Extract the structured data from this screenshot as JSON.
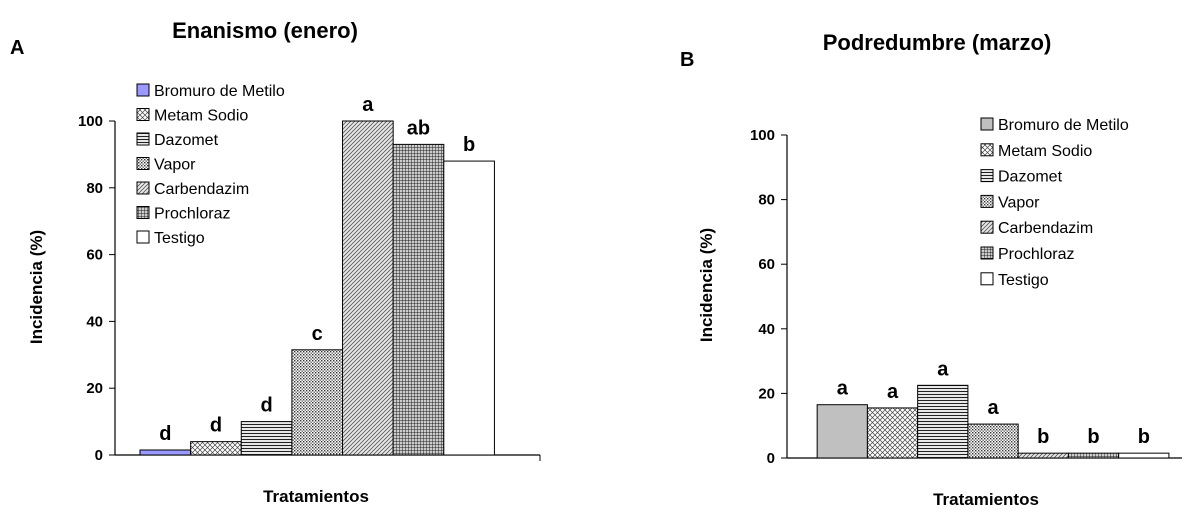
{
  "panels": [
    {
      "panel_letter": "A",
      "legend": [
        "Bromuro de Metilo",
        "Metam Sodio",
        "Dazomet",
        "Vapor",
        "Carbendazim",
        "Prochloraz",
        "Testigo"
      ],
      "chart_data": {
        "type": "bar",
        "title": "Enanismo (enero)",
        "xlabel": "Tratamientos",
        "ylabel": "Incidencia (%)",
        "ylim": [
          0,
          100
        ],
        "yticks": [
          0,
          20,
          40,
          60,
          80,
          100
        ],
        "categories": [
          "Bromuro de Metilo",
          "Metam Sodio",
          "Dazomet",
          "Vapor",
          "Carbendazim",
          "Prochloraz",
          "Testigo"
        ],
        "values": [
          1.5,
          4,
          10,
          31.5,
          100,
          93,
          88
        ],
        "significance_labels": [
          "d",
          "d",
          "d",
          "c",
          "a",
          "ab",
          "b"
        ],
        "legend_position": "top-left",
        "grid": false
      }
    },
    {
      "panel_letter": "B",
      "legend": [
        "Bromuro de Metilo",
        "Metam Sodio",
        "Dazomet",
        "Vapor",
        "Carbendazim",
        "Prochloraz",
        "Testigo"
      ],
      "chart_data": {
        "type": "bar",
        "title": "Podredumbre (marzo)",
        "xlabel": "Tratamientos",
        "ylabel": "Incidencia (%)",
        "ylim": [
          0,
          100
        ],
        "yticks": [
          0,
          20,
          40,
          60,
          80,
          100
        ],
        "categories": [
          "Bromuro de Metilo",
          "Metam Sodio",
          "Dazomet",
          "Vapor",
          "Carbendazim",
          "Prochloraz",
          "Testigo"
        ],
        "values": [
          16.5,
          15.5,
          22.5,
          10.5,
          1.5,
          1.5,
          1.5
        ],
        "significance_labels": [
          "a",
          "a",
          "a",
          "a",
          "b",
          "b",
          "b"
        ],
        "legend_position": "top-right",
        "grid": false
      }
    }
  ],
  "styles": {
    "colors": [
      "#9999ff",
      "#ffffff",
      "#ffffff",
      "#ffffff",
      "#ffffff",
      "#ffffff",
      "#ffffff"
    ],
    "colors_b": [
      "#c0c0c0",
      "#ffffff",
      "#ffffff",
      "#ffffff",
      "#ffffff",
      "#ffffff",
      "#ffffff"
    ],
    "patterns": [
      "solid",
      "cross",
      "hstripes",
      "dots",
      "diag",
      "grid",
      "solid"
    ]
  }
}
